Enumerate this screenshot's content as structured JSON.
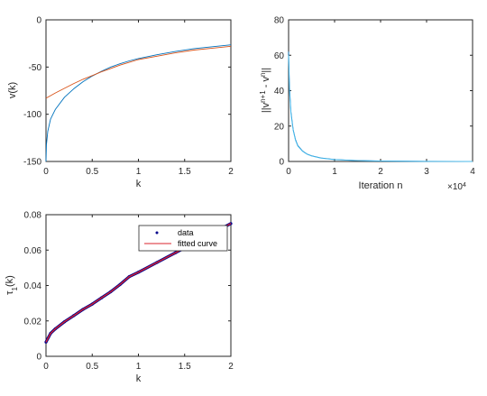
{
  "chart_data": [
    {
      "type": "line",
      "xlabel": "k",
      "ylabel": "v(k)",
      "xlim": [
        0,
        2
      ],
      "ylim": [
        -150,
        0
      ],
      "xticks": [
        "0",
        "0.5",
        "1",
        "1.5",
        "2"
      ],
      "yticks": [
        "0",
        "-50",
        "-100",
        "-150"
      ],
      "grid": false,
      "series": [
        {
          "color": "#0072bd",
          "x": [
            0,
            0.005,
            0.02,
            0.05,
            0.1,
            0.2,
            0.3,
            0.4,
            0.5,
            0.6,
            0.7,
            0.8,
            0.9,
            1.0,
            1.2,
            1.4,
            1.6,
            1.8,
            2.0
          ],
          "values": [
            -150,
            -132,
            -118,
            -105,
            -95,
            -82,
            -73,
            -65.5,
            -59.5,
            -54.5,
            -50,
            -46.5,
            -43.5,
            -41,
            -37,
            -33.5,
            -30.5,
            -28.5,
            -26.5
          ]
        },
        {
          "color": "#d95319",
          "x": [
            0,
            0.1,
            0.2,
            0.3,
            0.4,
            0.5,
            0.6,
            0.7,
            0.8,
            0.9,
            1.0,
            1.2,
            1.4,
            1.6,
            1.8,
            2.0
          ],
          "values": [
            -83,
            -77.5,
            -72.5,
            -67.5,
            -63,
            -59,
            -55,
            -51.5,
            -48,
            -45,
            -42,
            -38.5,
            -35,
            -32,
            -30,
            -28
          ]
        }
      ]
    },
    {
      "type": "line",
      "xlabel": "Iteration n",
      "ylabel": "||v^{n+1} - v^n||",
      "exponent_label": "×10^4",
      "xlim": [
        0,
        4
      ],
      "ylim": [
        0,
        80
      ],
      "xticks": [
        "0",
        "1",
        "2",
        "3",
        "4"
      ],
      "yticks": [
        "0",
        "20",
        "40",
        "60",
        "80"
      ],
      "grid": false,
      "series": [
        {
          "color": "#0072bd",
          "x": [
            0,
            0.02,
            0.05,
            0.1,
            0.15,
            0.2,
            0.3,
            0.4,
            0.5,
            0.7,
            1.0,
            1.5,
            2.0,
            3.0,
            4.0
          ],
          "values": [
            62,
            42,
            28,
            18,
            12.5,
            9,
            6,
            4.2,
            3.2,
            2,
            1.1,
            0.5,
            0.25,
            0.08,
            0.02
          ]
        },
        {
          "color": "#4dbeee",
          "x": [
            0,
            0.02,
            0.05,
            0.1,
            0.15,
            0.2,
            0.3,
            0.4,
            0.5,
            0.7,
            1.0,
            1.5,
            2.0,
            3.0,
            4.0
          ],
          "values": [
            60,
            40,
            27,
            17.5,
            12,
            8.7,
            5.8,
            4.1,
            3.1,
            1.9,
            1.0,
            0.45,
            0.2,
            0.06,
            0.01
          ]
        }
      ]
    },
    {
      "type": "line",
      "xlabel": "k",
      "ylabel": "τ_1(k)",
      "xlim": [
        0,
        2
      ],
      "ylim": [
        0,
        0.08
      ],
      "xticks": [
        "0",
        "0.5",
        "1",
        "1.5",
        "2"
      ],
      "yticks": [
        "0",
        "0.02",
        "0.04",
        "0.06",
        "0.08"
      ],
      "grid": false,
      "legend_position": "top-right",
      "series": [
        {
          "name": "data",
          "color": "#00008b",
          "marker": "dot",
          "x": [
            0,
            0.05,
            0.1,
            0.2,
            0.3,
            0.4,
            0.5,
            0.6,
            0.7,
            0.8,
            0.9,
            1.0,
            1.2,
            1.4,
            1.6,
            1.8,
            2.0
          ],
          "values": [
            0.008,
            0.013,
            0.0155,
            0.0195,
            0.023,
            0.0265,
            0.0295,
            0.033,
            0.0365,
            0.0405,
            0.045,
            0.0475,
            0.053,
            0.0585,
            0.064,
            0.0695,
            0.075
          ]
        },
        {
          "name": "fitted curve",
          "color": "#d9232e",
          "x": [
            0,
            0.05,
            0.1,
            0.2,
            0.3,
            0.4,
            0.5,
            0.6,
            0.7,
            0.8,
            0.9,
            1.0,
            1.2,
            1.4,
            1.6,
            1.8,
            2.0
          ],
          "values": [
            0.008,
            0.013,
            0.0155,
            0.0195,
            0.023,
            0.0265,
            0.0295,
            0.033,
            0.0365,
            0.0405,
            0.045,
            0.0475,
            0.053,
            0.0585,
            0.064,
            0.0695,
            0.075
          ]
        }
      ]
    }
  ]
}
